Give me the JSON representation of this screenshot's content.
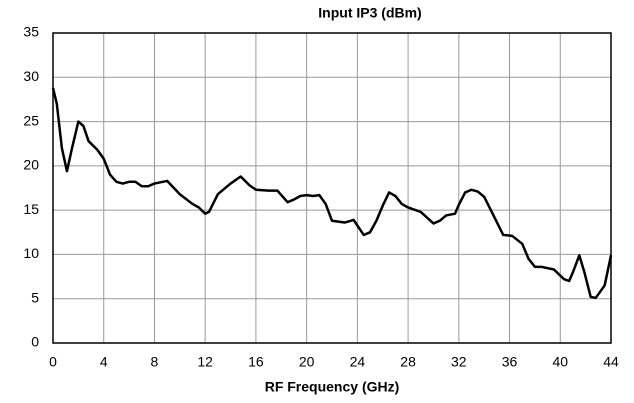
{
  "chart_data": {
    "type": "line",
    "title": "Input IP3 (dBm)",
    "x_label": "RF Frequency (GHz)",
    "x": [
      0,
      0.3,
      0.7,
      1.1,
      1.5,
      2,
      2.4,
      2.8,
      3.5,
      4,
      4.5,
      5,
      5.5,
      6,
      6.5,
      7,
      7.5,
      8,
      9,
      10,
      11,
      11.5,
      12,
      12.3,
      13,
      14,
      14.8,
      15.5,
      16,
      17,
      17.7,
      18.5,
      19,
      19.5,
      20,
      20.5,
      21,
      21.5,
      22,
      23,
      23.7,
      24.5,
      25,
      25.5,
      26,
      26.5,
      27,
      27.5,
      28,
      29,
      30,
      30.5,
      31,
      31.7,
      32,
      32.5,
      33,
      33.5,
      34,
      34.7,
      35.5,
      36.2,
      37,
      37.5,
      38,
      38.5,
      39.5,
      40.3,
      40.7,
      41,
      41.5,
      41.9,
      42.4,
      42.8,
      43.5,
      44
    ],
    "series": [
      {
        "name": "Input IP3",
        "color": "#000000",
        "values": [
          28.8,
          27,
          22,
          19.4,
          22,
          25,
          24.5,
          22.8,
          21.8,
          20.8,
          19,
          18.2,
          18,
          18.2,
          18.2,
          17.7,
          17.7,
          18,
          18.3,
          16.8,
          15.7,
          15.3,
          14.6,
          14.8,
          16.8,
          18,
          18.8,
          17.8,
          17.3,
          17.2,
          17.2,
          15.9,
          16.2,
          16.6,
          16.7,
          16.6,
          16.7,
          15.7,
          13.8,
          13.6,
          13.9,
          12.2,
          12.5,
          13.8,
          15.5,
          17,
          16.6,
          15.7,
          15.3,
          14.8,
          13.5,
          13.8,
          14.4,
          14.6,
          15.6,
          17,
          17.3,
          17.1,
          16.5,
          14.5,
          12.2,
          12.1,
          11.2,
          9.5,
          8.6,
          8.6,
          8.3,
          7.2,
          7.0,
          8,
          9.9,
          8,
          5.2,
          5.1,
          6.5,
          9.9
        ]
      }
    ],
    "xlim": [
      0,
      44
    ],
    "xticks": [
      0,
      4,
      8,
      12,
      16,
      20,
      24,
      28,
      32,
      36,
      40,
      44
    ],
    "ylim": [
      0,
      35
    ],
    "yticks": [
      0,
      5,
      10,
      15,
      20,
      25,
      30,
      35
    ],
    "grid": true
  }
}
